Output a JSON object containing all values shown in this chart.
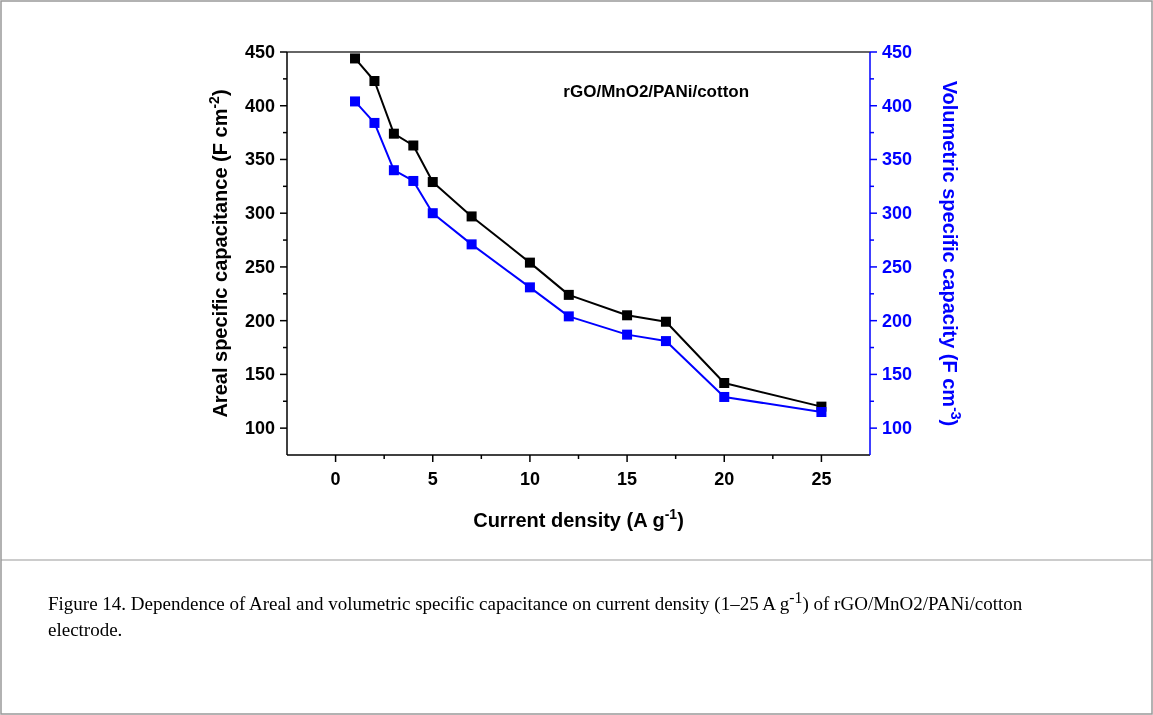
{
  "chart_data": {
    "type": "line",
    "xlabel": "Current density (A g$^{-1}$)",
    "ylabel": "Areal specific capacitance (F cm$^{-2}$)",
    "y2label": "Volumetric specific capacity (F cm$^{-3}$)",
    "annotations": [
      "rGO/MnO2/PANi/cotton",
      "Figure 14. Dependence of Areal and volumetric specific capacitance on current density (1–25 A g$^{-1}$) of rGO/MnO2/PANi/cotton electrode."
    ],
    "x": [
      1,
      2,
      3,
      4,
      5,
      7,
      10,
      12,
      15,
      17,
      20,
      25
    ],
    "series": [
      {
        "color": "#000000",
        "values": [
          444,
          423,
          374,
          363,
          329,
          297,
          254,
          224,
          205,
          199,
          142,
          120
        ]
      },
      {
        "color": "#0000ff",
        "axis": "y2",
        "values": [
          404,
          384,
          340,
          330,
          300,
          271,
          231,
          204,
          187,
          181,
          129,
          115
        ]
      }
    ],
    "xlim": [
      -2.5,
      27.5
    ],
    "xticks": [
      0,
      {
        "value": 2.5,
        "label": null
      },
      5,
      {
        "value": 7.5,
        "label": null
      },
      10,
      {
        "value": 12.5,
        "label": null
      },
      15,
      {
        "value": 17.5,
        "label": null
      },
      20,
      {
        "value": 22.5,
        "label": null
      },
      25
    ],
    "ylim": [
      75,
      450
    ],
    "yticks": [
      100,
      {
        "value": 125,
        "label": null
      },
      150,
      {
        "value": 175,
        "label": null
      },
      200,
      {
        "value": 225,
        "label": null
      },
      250,
      {
        "value": 275,
        "label": null
      },
      300,
      {
        "value": 325,
        "label": null
      },
      350,
      {
        "value": 375,
        "label": null
      },
      400,
      {
        "value": 425,
        "label": null
      },
      450
    ],
    "y2lim": [
      75,
      450
    ],
    "y2ticks": [
      100,
      {
        "value": 125,
        "label": null
      },
      150,
      {
        "value": 175,
        "label": null
      },
      200,
      {
        "value": 225,
        "label": null
      },
      250,
      {
        "value": 275,
        "label": null
      },
      300,
      {
        "value": 325,
        "label": null
      },
      350,
      {
        "value": 375,
        "label": null
      },
      400,
      {
        "value": 425,
        "label": null
      },
      450
    ],
    "marker": "square",
    "line_style": "solid"
  }
}
